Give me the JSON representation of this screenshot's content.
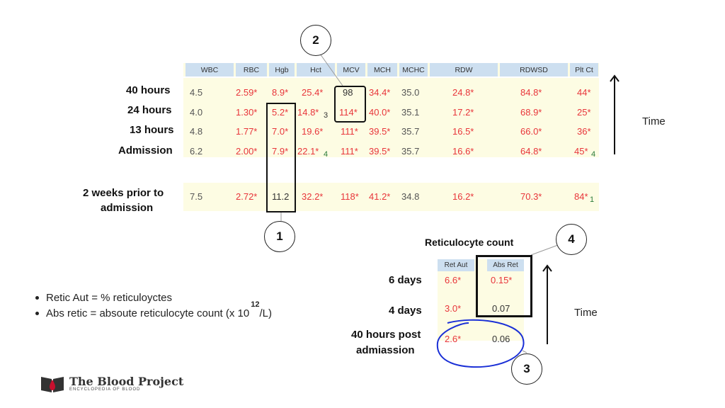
{
  "table": {
    "headers": [
      "WBC",
      "RBC",
      "Hgb",
      "Hct",
      "MCV",
      "MCH",
      "MCHC",
      "RDW",
      "RDWSD",
      "Plt Ct"
    ],
    "rows": [
      {
        "label": "40 hours",
        "values": [
          "4.5",
          "2.59*",
          "8.9*",
          "25.4*",
          "98",
          "34.4*",
          "35.0",
          "24.8*",
          "84.8*",
          "44*"
        ]
      },
      {
        "label": "24 hours",
        "values": [
          "4.0",
          "1.30*",
          "5.2*",
          "14.8*",
          "114*",
          "40.0*",
          "35.1",
          "17.2*",
          "68.9*",
          "25*"
        ],
        "hct_sub": "3"
      },
      {
        "label": "13 hours",
        "values": [
          "4.8",
          "1.77*",
          "7.0*",
          "19.6*",
          "111*",
          "39.5*",
          "35.7",
          "16.5*",
          "66.0*",
          "36*"
        ]
      },
      {
        "label": "Admission",
        "values": [
          "6.2",
          "2.00*",
          "7.9*",
          "22.1*",
          "111*",
          "39.5*",
          "35.7",
          "16.6*",
          "64.8*",
          "45*"
        ],
        "hct_sub": "4",
        "plt_sub": "4"
      },
      {
        "label_line1": "2 weeks prior to",
        "label_line2": "admission",
        "values": [
          "7.5",
          "2.72*",
          "11.2",
          "32.2*",
          "118*",
          "41.2*",
          "34.8",
          "16.2*",
          "70.3*",
          "84*"
        ],
        "plt_sub": "1"
      }
    ]
  },
  "callouts": {
    "c1": "1",
    "c2": "2",
    "c3": "3",
    "c4": "4"
  },
  "time_label_top": "Time",
  "time_label_bottom": "Time",
  "retic": {
    "title": "Reticulocyte count",
    "headers": [
      "Ret Aut",
      "Abs Ret"
    ],
    "rows": [
      {
        "label": "6 days",
        "values": [
          "6.6*",
          "0.15*"
        ]
      },
      {
        "label": "4 days",
        "values": [
          "3.0*",
          "0.07"
        ]
      },
      {
        "label_line1": "40 hours post",
        "label_line2": "admiassion",
        "values": [
          "2.6*",
          "0.06"
        ]
      }
    ]
  },
  "notes": {
    "line1": "Retic Aut = % reticuloyctes",
    "line2_pre": "Abs retic = absoute reticulocyte count (x 10",
    "line2_exp": "12",
    "line2_post": "/L)"
  },
  "logo": {
    "title": "The Blood Project",
    "subtitle": "ENCYCLOPEDIA OF BLOOD"
  },
  "colors": {
    "abnormal": "#e8353a",
    "normal": "#555555",
    "header_bg": "#cddff0",
    "row_bg": "#fdfce3",
    "circle_highlight": "#1a2fd6"
  }
}
